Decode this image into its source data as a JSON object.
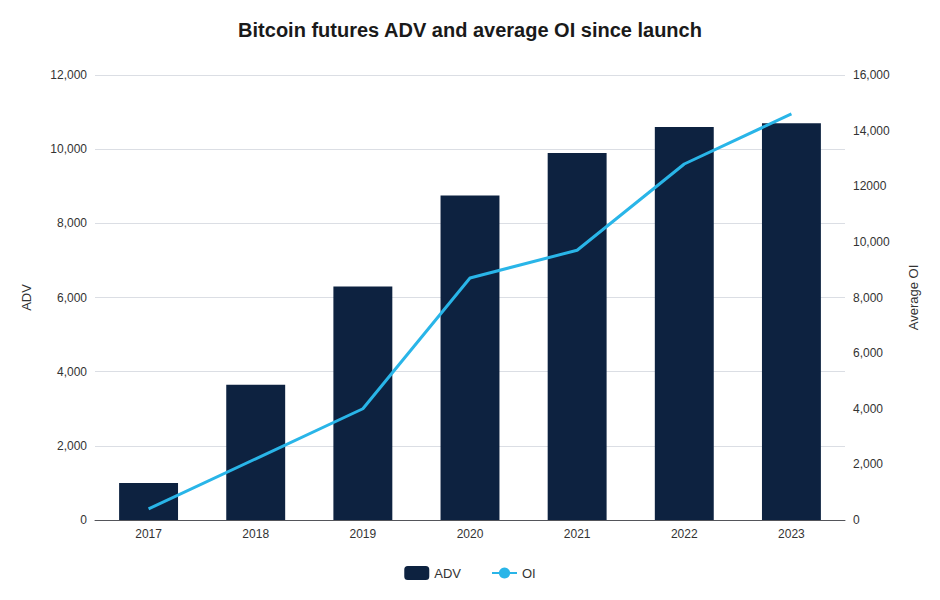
{
  "chart_data": {
    "type": "bar",
    "title": "Bitcoin futures ADV and average OI since launch",
    "categories": [
      "2017",
      "2018",
      "2019",
      "2020",
      "2021",
      "2022",
      "2023"
    ],
    "series": [
      {
        "name": "ADV",
        "type": "bar",
        "color": "#0d2240",
        "values": [
          1000,
          3650,
          6300,
          8750,
          9900,
          10600,
          10700
        ]
      },
      {
        "name": "OI",
        "type": "line",
        "color": "#29b5e8",
        "axis": "y2",
        "values": [
          400,
          2200,
          4000,
          8700,
          9700,
          12800,
          14600
        ]
      }
    ],
    "ylabel": "ADV",
    "y2label": "Average OI",
    "ylim": [
      0,
      12000
    ],
    "yticks": [
      0,
      {
        "value": 2000,
        "label": "2,000"
      },
      {
        "value": 4000,
        "label": "4,000"
      },
      {
        "value": 6000,
        "label": "6,000"
      },
      {
        "value": 8000,
        "label": "8,000"
      },
      {
        "value": 10000,
        "label": "10,000"
      },
      {
        "value": 12000,
        "label": "12,000"
      }
    ],
    "y2lim": [
      0,
      16000
    ],
    "y2ticks": [
      0,
      {
        "value": 2000,
        "label": "2,000"
      },
      {
        "value": 4000,
        "label": "4,000"
      },
      {
        "value": 6000,
        "label": "6,000"
      },
      {
        "value": 8000,
        "label": "8,000"
      },
      {
        "value": 10000,
        "label": "10,000"
      },
      12000,
      {
        "value": 14000,
        "label": "14,000"
      },
      {
        "value": 16000,
        "label": "16,000"
      }
    ],
    "grid": true,
    "legend": "bottom"
  }
}
